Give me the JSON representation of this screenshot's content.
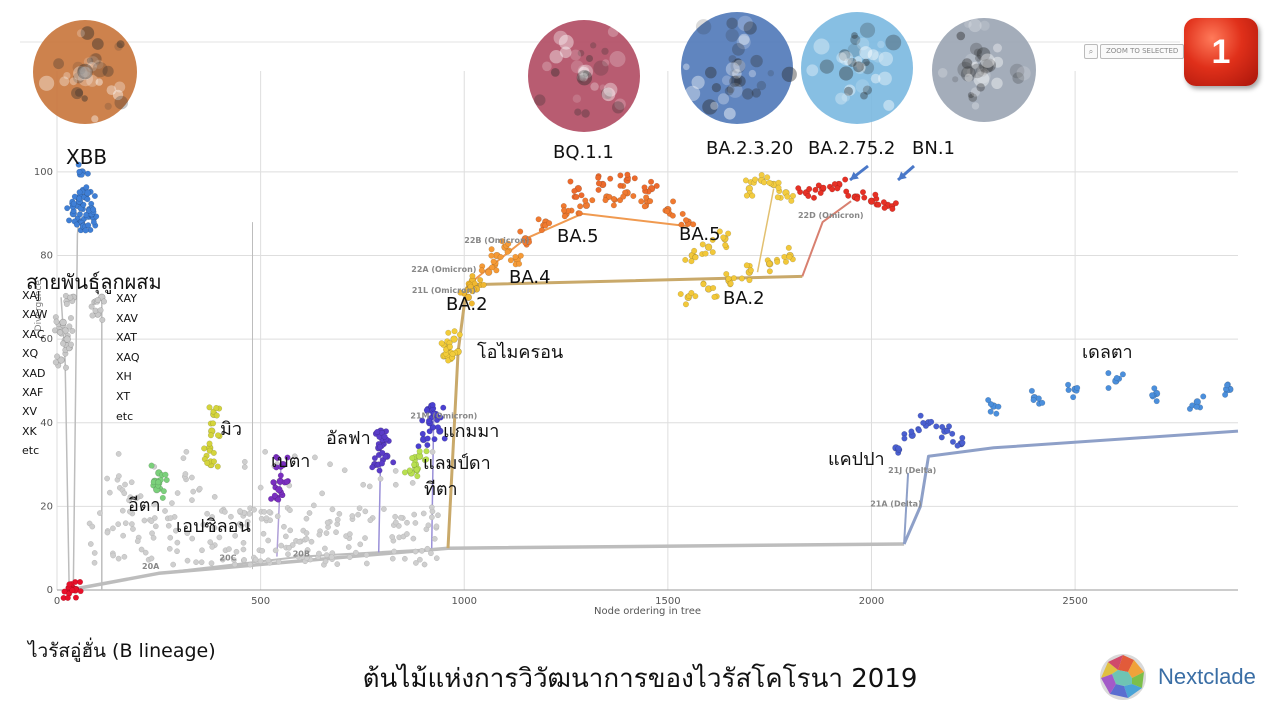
{
  "chart_data": {
    "type": "scatter",
    "title": "ต้นไม้แห่งการวิวัฒนาการของไวรัสโคโรนา 2019",
    "xlabel": "Node ordering in tree",
    "ylabel": "Divergence",
    "xlim": [
      0,
      2900
    ],
    "ylim": [
      0,
      105
    ],
    "x_ticks": [
      0,
      500,
      1000,
      1500,
      2000,
      2500
    ],
    "y_ticks": [
      0,
      20,
      40,
      60,
      80,
      100
    ],
    "clade_labels": [
      {
        "text": "20A",
        "x": 230,
        "y": 5
      },
      {
        "text": "20C",
        "x": 420,
        "y": 7
      },
      {
        "text": "20B",
        "x": 600,
        "y": 8
      },
      {
        "text": "21M (Omicron)",
        "x": 950,
        "y": 41
      },
      {
        "text": "21L (Omicron)",
        "x": 950,
        "y": 71
      },
      {
        "text": "22A (Omicron)",
        "x": 950,
        "y": 76
      },
      {
        "text": "22B (Omicron)",
        "x": 1080,
        "y": 83
      },
      {
        "text": "22D (Omicron)",
        "x": 1900,
        "y": 89
      },
      {
        "text": "21J (Delta)",
        "x": 2100,
        "y": 28
      },
      {
        "text": "21A (Delta)",
        "x": 2060,
        "y": 20
      }
    ],
    "series": [
      {
        "name": "B lineage (Wuhan)",
        "color": "#e8102a",
        "x": [
          30,
          38,
          45
        ],
        "y": [
          0,
          0.5,
          0
        ]
      },
      {
        "name": "XBB",
        "color": "#3f7fd6",
        "x": [
          40,
          50,
          60,
          70,
          80,
          90,
          55,
          65,
          75,
          85,
          62
        ],
        "y": [
          90,
          92,
          88,
          94,
          91,
          89,
          93,
          87,
          95,
          90,
          100
        ]
      },
      {
        "name": "Recombinants",
        "color": "#c9c9c9",
        "x": [
          10,
          20,
          30,
          40,
          100,
          110,
          15,
          25
        ],
        "y": [
          55,
          62,
          58,
          70,
          66,
          70,
          64,
          60
        ]
      },
      {
        "name": "อีตา",
        "color": "#7bd07b",
        "x": [
          240,
          250,
          245
        ],
        "y": [
          26,
          28,
          24
        ]
      },
      {
        "name": "มิว",
        "color": "#d4d43c",
        "x": [
          375,
          380,
          385,
          378
        ],
        "y": [
          34,
          38,
          42,
          30
        ]
      },
      {
        "name": "เบตา",
        "color": "#7a2fc0",
        "x": [
          540,
          548,
          555,
          545
        ],
        "y": [
          22,
          26,
          30,
          24
        ]
      },
      {
        "name": "อัลฟา",
        "color": "#5a3cc8",
        "x": [
          780,
          790,
          800,
          810,
          795
        ],
        "y": [
          30,
          34,
          36,
          32,
          38
        ]
      },
      {
        "name": "แกมมา",
        "color": "#4a40d0",
        "x": [
          900,
          915,
          930,
          920,
          940
        ],
        "y": [
          36,
          40,
          42,
          44,
          38
        ]
      },
      {
        "name": "แลมป์ดา",
        "color": "#b8e050",
        "x": [
          870,
          880,
          890
        ],
        "y": [
          28,
          30,
          32
        ]
      },
      {
        "name": "โอไมครอน",
        "color": "#f2cc3a",
        "x": [
          950,
          960,
          975,
          985
        ],
        "y": [
          56,
          58,
          60,
          57
        ]
      },
      {
        "name": "BA.2",
        "color": "#f0b830",
        "x": [
          1010,
          1020,
          1030
        ],
        "y": [
          70,
          74,
          72
        ]
      },
      {
        "name": "BA.4",
        "color": "#f59a36",
        "x": [
          1060,
          1080,
          1100,
          1130
        ],
        "y": [
          76,
          80,
          82,
          79
        ]
      },
      {
        "name": "BA.5",
        "color": "#f07a30",
        "x": [
          1150,
          1200,
          1250,
          1300,
          1350,
          1400,
          1450,
          1500,
          1550
        ],
        "y": [
          84,
          88,
          90,
          92,
          94,
          95,
          93,
          91,
          88
        ]
      },
      {
        "name": "BQ.1.1",
        "color": "#ec6a2c",
        "x": [
          1280,
          1340,
          1400,
          1460
        ],
        "y": [
          96,
          97,
          98,
          96
        ]
      },
      {
        "name": "BA.2 (2nd)",
        "color": "#f2c83a",
        "x": [
          1550,
          1600,
          1650,
          1700,
          1750,
          1800
        ],
        "y": [
          70,
          72,
          74,
          76,
          78,
          80
        ]
      },
      {
        "name": "BA.5 (2nd)",
        "color": "#f2c83a",
        "x": [
          1560,
          1600,
          1640
        ],
        "y": [
          80,
          82,
          84
        ]
      },
      {
        "name": "BA.2.3.20",
        "color": "#f3cc40",
        "x": [
          1700,
          1730,
          1760,
          1790
        ],
        "y": [
          96,
          98,
          97,
          95
        ]
      },
      {
        "name": "BA.2.75.2",
        "color": "#e63025",
        "x": [
          1840,
          1880,
          1920,
          1960,
          2000,
          2040
        ],
        "y": [
          95,
          96,
          97,
          94,
          93,
          92
        ]
      },
      {
        "name": "แคปปา",
        "color": "#4a5fd0",
        "x": [
          2060,
          2100,
          2140,
          2180,
          2220
        ],
        "y": [
          34,
          37,
          40,
          38,
          35
        ]
      },
      {
        "name": "เดลตา",
        "color": "#4b8fdc",
        "x": [
          2300,
          2400,
          2500,
          2600,
          2700,
          2800,
          2880
        ],
        "y": [
          44,
          46,
          48,
          50,
          47,
          45,
          48
        ]
      }
    ]
  },
  "annotations": {
    "xbb": "XBB",
    "recombinant_title": "สายพันธุ์ลูกผสม",
    "recombinants_col1": [
      "XAJ",
      "XAW",
      "XAC",
      "XQ",
      "XAD",
      "XAF",
      "XV",
      "XK",
      "etc"
    ],
    "recombinants_col2": [
      "XAY",
      "XAV",
      "XAT",
      "XAQ",
      "XH",
      "XT",
      "etc"
    ],
    "eta": "อีตา",
    "epsilon": "เอปซิลอน",
    "mu": "มิว",
    "beta": "เบตา",
    "alpha": "อัลฟา",
    "gamma": "แกมมา",
    "lambda": "แลมป์ดา",
    "theta": "ทีตา",
    "omicron": "โอไมครอน",
    "ba2_a": "BA.2",
    "ba4": "BA.4",
    "ba5_a": "BA.5",
    "bq11": "BQ.1.1",
    "ba5_b": "BA.5",
    "ba2_b": "BA.2",
    "ba2320": "BA.2.3.20",
    "ba2752": "BA.2.75.2",
    "bn1": "BN.1",
    "kappa": "แคปปา",
    "delta": "เดลตา",
    "wuhan": "ไวรัสอู่ฮั่น (B lineage)",
    "slide_number": "1",
    "zoom_button": "ZOOM TO SELECTED",
    "brand": "Nextclade",
    "footer_title": "ต้นไม้แห่งการวิวัฒนาการของไวรัสโคโรนา 2019"
  },
  "virus_images": [
    {
      "color": "#c8743a"
    },
    {
      "color": "#b04a62"
    },
    {
      "color": "#4f78b8"
    },
    {
      "color": "#7ab8e0"
    },
    {
      "color": "#9aa4b2"
    }
  ],
  "colors": {
    "trunk": "#bdbdbd",
    "omicron_stem": "#c9a96a",
    "delta_stem": "#8ea0c8"
  }
}
